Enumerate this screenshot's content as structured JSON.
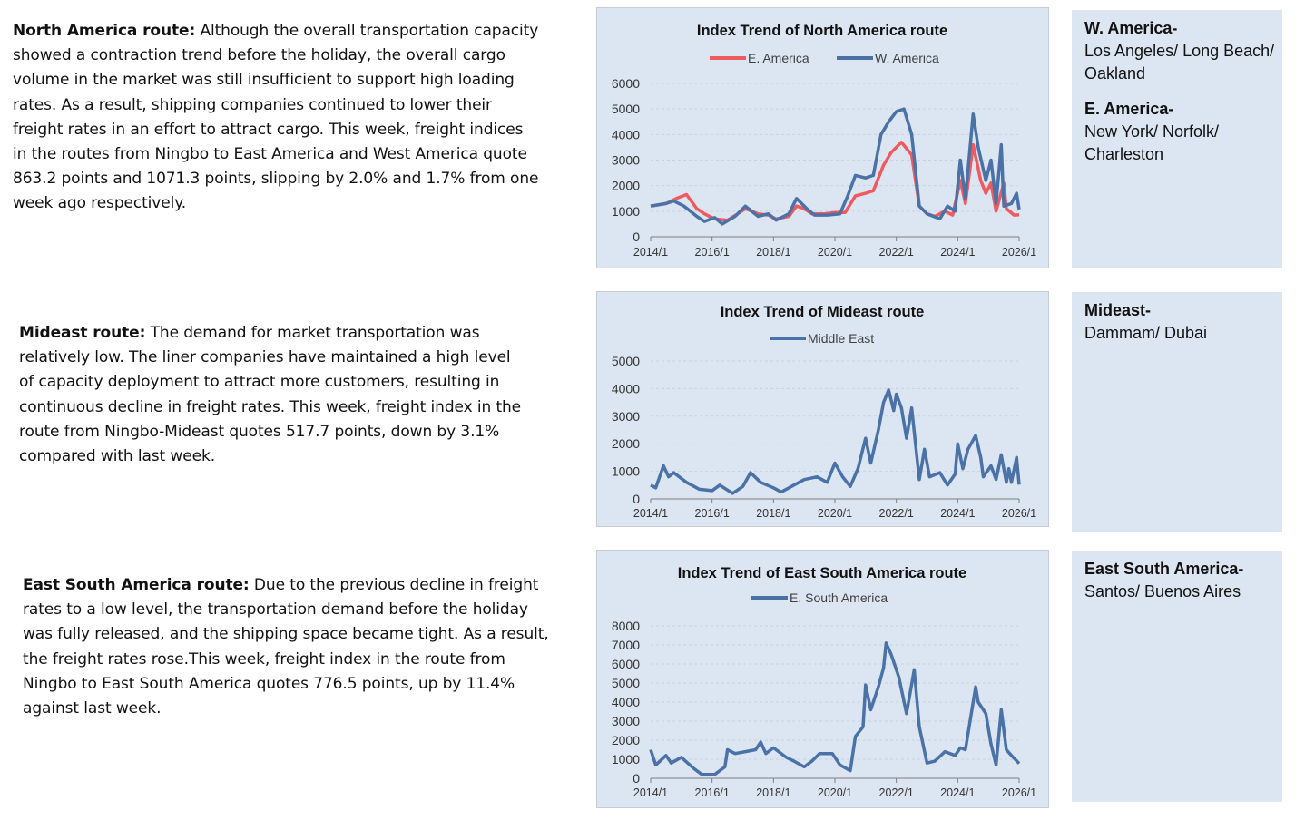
{
  "paragraphs": [
    {
      "heading": "North America route:",
      "text": " Although the overall transportation capacity showed a contraction trend before the holiday, the overall cargo volume in the market was still insufficient to support high loading rates. As a result, shipping companies continued to lower their freight rates in an effort to attract cargo. This week, freight indices in the routes from Ningbo to East America and West America quote 863.2 points and 1071.3 points, slipping by 2.0% and 1.7% from one week ago respectively."
    },
    {
      "heading": "Mideast route:",
      "text": " The demand for market transportation was relatively low. The liner companies have maintained a high level of capacity deployment to attract more customers, resulting in continuous decline in freight rates. This week, freight index in the route from Ningbo-Mideast quotes 517.7 points, down by 3.1% compared with last week."
    },
    {
      "heading": "East South America route:",
      "text": " Due to the previous decline in freight rates to a low level, the transportation demand before the holiday was fully released, and the shipping space became tight. As a result, the freight rates rose.This week, freight index in the route from Ningbo to East South America quotes 776.5 points, up by 11.4% against last week."
    }
  ],
  "sidebars": [
    {
      "entries": [
        {
          "heading": "W. America-",
          "ports": "Los Angeles/ Long Beach/ Oakland"
        },
        {
          "heading": "E. America-",
          "ports": "New York/ Norfolk/ Charleston"
        }
      ]
    },
    {
      "entries": [
        {
          "heading": "Mideast-",
          "ports": "Dammam/ Dubai"
        }
      ]
    },
    {
      "entries": [
        {
          "heading": "East South America-",
          "ports": "Santos/ Buenos Aires"
        }
      ]
    }
  ],
  "chart_data": [
    {
      "type": "line",
      "title": "Index Trend of North America route",
      "legend_position": "top",
      "grid": true,
      "x_ticks": [
        "2014/1",
        "2016/1",
        "2018/1",
        "2020/1",
        "2022/1",
        "2024/1",
        "2026/1"
      ],
      "xlim": [
        "2014/1",
        "2026/1"
      ],
      "y_ticks": [
        0,
        1000,
        2000,
        3000,
        4000,
        5000,
        6000
      ],
      "ylim": [
        0,
        6000
      ],
      "series": [
        {
          "name": "E. America",
          "color": "#ef5a5f",
          "points": [
            [
              "2014/1",
              1200
            ],
            [
              "2014/7",
              1300
            ],
            [
              "2014/11",
              1500
            ],
            [
              "2015/3",
              1650
            ],
            [
              "2015/7",
              1100
            ],
            [
              "2015/10",
              900
            ],
            [
              "2016/2",
              700
            ],
            [
              "2016/7",
              650
            ],
            [
              "2016/11",
              900
            ],
            [
              "2017/2",
              1100
            ],
            [
              "2017/7",
              900
            ],
            [
              "2017/11",
              850
            ],
            [
              "2018/2",
              700
            ],
            [
              "2018/7",
              800
            ],
            [
              "2018/10",
              1200
            ],
            [
              "2019/1",
              1100
            ],
            [
              "2019/4",
              900
            ],
            [
              "2019/9",
              900
            ],
            [
              "2020/1",
              950
            ],
            [
              "2020/5",
              950
            ],
            [
              "2020/9",
              1600
            ],
            [
              "2021/1",
              1700
            ],
            [
              "2021/4",
              1800
            ],
            [
              "2021/8",
              2800
            ],
            [
              "2021/11",
              3300
            ],
            [
              "2022/3",
              3700
            ],
            [
              "2022/7",
              3200
            ],
            [
              "2022/10",
              1200
            ],
            [
              "2023/1",
              900
            ],
            [
              "2023/4",
              800
            ],
            [
              "2023/8",
              1000
            ],
            [
              "2023/11",
              850
            ],
            [
              "2024/2",
              2200
            ],
            [
              "2024/4",
              1300
            ],
            [
              "2024/7",
              3600
            ],
            [
              "2024/10",
              2200
            ],
            [
              "2024/12",
              1700
            ],
            [
              "2025/2",
              2100
            ],
            [
              "2025/4",
              1000
            ],
            [
              "2025/7",
              2100
            ],
            [
              "2025/8",
              1100
            ],
            [
              "2025/11",
              850
            ],
            [
              "2026/1",
              863
            ]
          ]
        },
        {
          "name": "W. America",
          "color": "#4a72a6",
          "points": [
            [
              "2014/1",
              1200
            ],
            [
              "2014/7",
              1300
            ],
            [
              "2014/10",
              1400
            ],
            [
              "2015/2",
              1200
            ],
            [
              "2015/7",
              800
            ],
            [
              "2015/10",
              600
            ],
            [
              "2016/2",
              750
            ],
            [
              "2016/5",
              500
            ],
            [
              "2016/10",
              800
            ],
            [
              "2017/2",
              1200
            ],
            [
              "2017/7",
              800
            ],
            [
              "2017/11",
              900
            ],
            [
              "2018/2",
              650
            ],
            [
              "2018/7",
              900
            ],
            [
              "2018/10",
              1500
            ],
            [
              "2019/2",
              1100
            ],
            [
              "2019/5",
              850
            ],
            [
              "2019/10",
              850
            ],
            [
              "2020/3",
              900
            ],
            [
              "2020/6",
              1600
            ],
            [
              "2020/9",
              2400
            ],
            [
              "2021/1",
              2300
            ],
            [
              "2021/4",
              2400
            ],
            [
              "2021/7",
              4000
            ],
            [
              "2021/10",
              4500
            ],
            [
              "2022/1",
              4900
            ],
            [
              "2022/4",
              5000
            ],
            [
              "2022/7",
              4000
            ],
            [
              "2022/10",
              1200
            ],
            [
              "2023/1",
              900
            ],
            [
              "2023/6",
              700
            ],
            [
              "2023/9",
              1200
            ],
            [
              "2023/12",
              1000
            ],
            [
              "2024/2",
              3000
            ],
            [
              "2024/4",
              1500
            ],
            [
              "2024/7",
              4800
            ],
            [
              "2024/9",
              3500
            ],
            [
              "2024/12",
              2200
            ],
            [
              "2025/2",
              3000
            ],
            [
              "2025/4",
              1300
            ],
            [
              "2025/6",
              3600
            ],
            [
              "2025/7",
              1200
            ],
            [
              "2025/10",
              1300
            ],
            [
              "2025/12",
              1700
            ],
            [
              "2026/1",
              1071
            ]
          ]
        }
      ]
    },
    {
      "type": "line",
      "title": "Index Trend of Mideast route",
      "legend_position": "top",
      "grid": true,
      "x_ticks": [
        "2014/1",
        "2016/1",
        "2018/1",
        "2020/1",
        "2022/1",
        "2024/1",
        "2026/1"
      ],
      "xlim": [
        "2014/1",
        "2026/1"
      ],
      "y_ticks": [
        0,
        1000,
        2000,
        3000,
        4000,
        5000
      ],
      "ylim": [
        0,
        5000
      ],
      "series": [
        {
          "name": "Middle East",
          "color": "#4a72a6",
          "points": [
            [
              "2014/1",
              500
            ],
            [
              "2014/3",
              400
            ],
            [
              "2014/6",
              1200
            ],
            [
              "2014/8",
              800
            ],
            [
              "2014/10",
              950
            ],
            [
              "2015/3",
              600
            ],
            [
              "2015/8",
              350
            ],
            [
              "2016/1",
              300
            ],
            [
              "2016/4",
              500
            ],
            [
              "2016/9",
              200
            ],
            [
              "2017/1",
              450
            ],
            [
              "2017/4",
              950
            ],
            [
              "2017/8",
              600
            ],
            [
              "2018/1",
              400
            ],
            [
              "2018/4",
              250
            ],
            [
              "2018/8",
              450
            ],
            [
              "2019/1",
              700
            ],
            [
              "2019/6",
              800
            ],
            [
              "2019/10",
              600
            ],
            [
              "2020/1",
              1300
            ],
            [
              "2020/4",
              800
            ],
            [
              "2020/7",
              450
            ],
            [
              "2020/10",
              1100
            ],
            [
              "2021/1",
              2200
            ],
            [
              "2021/3",
              1300
            ],
            [
              "2021/6",
              2500
            ],
            [
              "2021/8",
              3500
            ],
            [
              "2021/10",
              3950
            ],
            [
              "2021/12",
              3200
            ],
            [
              "2022/1",
              3800
            ],
            [
              "2022/3",
              3300
            ],
            [
              "2022/5",
              2200
            ],
            [
              "2022/7",
              3300
            ],
            [
              "2022/10",
              700
            ],
            [
              "2022/12",
              1800
            ],
            [
              "2023/2",
              800
            ],
            [
              "2023/6",
              950
            ],
            [
              "2023/9",
              500
            ],
            [
              "2023/12",
              900
            ],
            [
              "2024/1",
              2000
            ],
            [
              "2024/3",
              1100
            ],
            [
              "2024/5",
              1800
            ],
            [
              "2024/8",
              2300
            ],
            [
              "2024/10",
              1500
            ],
            [
              "2024/11",
              800
            ],
            [
              "2025/2",
              1200
            ],
            [
              "2025/4",
              700
            ],
            [
              "2025/6",
              1600
            ],
            [
              "2025/8",
              600
            ],
            [
              "2025/9",
              1100
            ],
            [
              "2025/10",
              600
            ],
            [
              "2025/12",
              1500
            ],
            [
              "2026/1",
              518
            ]
          ]
        }
      ]
    },
    {
      "type": "line",
      "title": "Index Trend of East South America route",
      "legend_position": "top",
      "grid": true,
      "x_ticks": [
        "2014/1",
        "2016/1",
        "2018/1",
        "2020/1",
        "2022/1",
        "2024/1",
        "2026/1"
      ],
      "xlim": [
        "2014/1",
        "2026/1"
      ],
      "y_ticks": [
        0,
        1000,
        2000,
        3000,
        4000,
        5000,
        6000,
        7000,
        8000
      ],
      "ylim": [
        0,
        8000
      ],
      "series": [
        {
          "name": "E. South America",
          "color": "#4a72a6",
          "points": [
            [
              "2014/1",
              1500
            ],
            [
              "2014/3",
              700
            ],
            [
              "2014/7",
              1200
            ],
            [
              "2014/9",
              800
            ],
            [
              "2015/1",
              1100
            ],
            [
              "2015/6",
              500
            ],
            [
              "2015/9",
              200
            ],
            [
              "2016/2",
              200
            ],
            [
              "2016/6",
              600
            ],
            [
              "2016/7",
              1500
            ],
            [
              "2016/10",
              1300
            ],
            [
              "2017/2",
              1400
            ],
            [
              "2017/6",
              1500
            ],
            [
              "2017/8",
              1900
            ],
            [
              "2017/10",
              1300
            ],
            [
              "2018/1",
              1600
            ],
            [
              "2018/6",
              1100
            ],
            [
              "2018/9",
              900
            ],
            [
              "2019/1",
              600
            ],
            [
              "2019/4",
              900
            ],
            [
              "2019/7",
              1300
            ],
            [
              "2019/12",
              1300
            ],
            [
              "2020/3",
              700
            ],
            [
              "2020/7",
              400
            ],
            [
              "2020/9",
              2200
            ],
            [
              "2020/12",
              2700
            ],
            [
              "2021/1",
              4900
            ],
            [
              "2021/3",
              3600
            ],
            [
              "2021/6",
              4800
            ],
            [
              "2021/8",
              5800
            ],
            [
              "2021/9",
              7100
            ],
            [
              "2021/11",
              6500
            ],
            [
              "2022/2",
              5300
            ],
            [
              "2022/5",
              3400
            ],
            [
              "2022/8",
              5700
            ],
            [
              "2022/10",
              2700
            ],
            [
              "2023/1",
              800
            ],
            [
              "2023/4",
              900
            ],
            [
              "2023/8",
              1400
            ],
            [
              "2023/12",
              1200
            ],
            [
              "2024/2",
              1600
            ],
            [
              "2024/4",
              1500
            ],
            [
              "2024/8",
              4800
            ],
            [
              "2024/9",
              4000
            ],
            [
              "2024/12",
              3400
            ],
            [
              "2025/2",
              1800
            ],
            [
              "2025/4",
              700
            ],
            [
              "2025/6",
              3600
            ],
            [
              "2025/8",
              1500
            ],
            [
              "2025/10",
              1200
            ],
            [
              "2026/1",
              776
            ]
          ]
        }
      ]
    }
  ]
}
